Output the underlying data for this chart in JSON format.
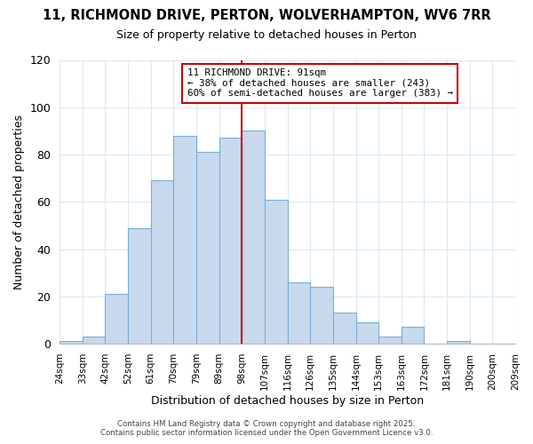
{
  "title": "11, RICHMOND DRIVE, PERTON, WOLVERHAMPTON, WV6 7RR",
  "subtitle": "Size of property relative to detached houses in Perton",
  "xlabel": "Distribution of detached houses by size in Perton",
  "ylabel": "Number of detached properties",
  "bin_labels": [
    "24sqm",
    "33sqm",
    "42sqm",
    "52sqm",
    "61sqm",
    "70sqm",
    "79sqm",
    "89sqm",
    "98sqm",
    "107sqm",
    "116sqm",
    "126sqm",
    "135sqm",
    "144sqm",
    "153sqm",
    "163sqm",
    "172sqm",
    "181sqm",
    "190sqm",
    "200sqm",
    "209sqm"
  ],
  "bar_values": [
    1,
    3,
    21,
    49,
    69,
    88,
    81,
    87,
    90,
    61,
    26,
    24,
    13,
    9,
    3,
    7,
    0,
    1,
    0,
    0
  ],
  "bar_color": "#c8d9ee",
  "bar_edge_color": "#7aafd4",
  "vline_color": "#cc0000",
  "ylim": [
    0,
    120
  ],
  "yticks": [
    0,
    20,
    40,
    60,
    80,
    100,
    120
  ],
  "annotation_title": "11 RICHMOND DRIVE: 91sqm",
  "annotation_line1": "← 38% of detached houses are smaller (243)",
  "annotation_line2": "60% of semi-detached houses are larger (383) →",
  "annotation_box_color": "#ffffff",
  "annotation_box_edge": "#cc0000",
  "footer1": "Contains HM Land Registry data © Crown copyright and database right 2025.",
  "footer2": "Contains public sector information licensed under the Open Government Licence v3.0.",
  "background_color": "#ffffff",
  "grid_color": "#dce8f4"
}
